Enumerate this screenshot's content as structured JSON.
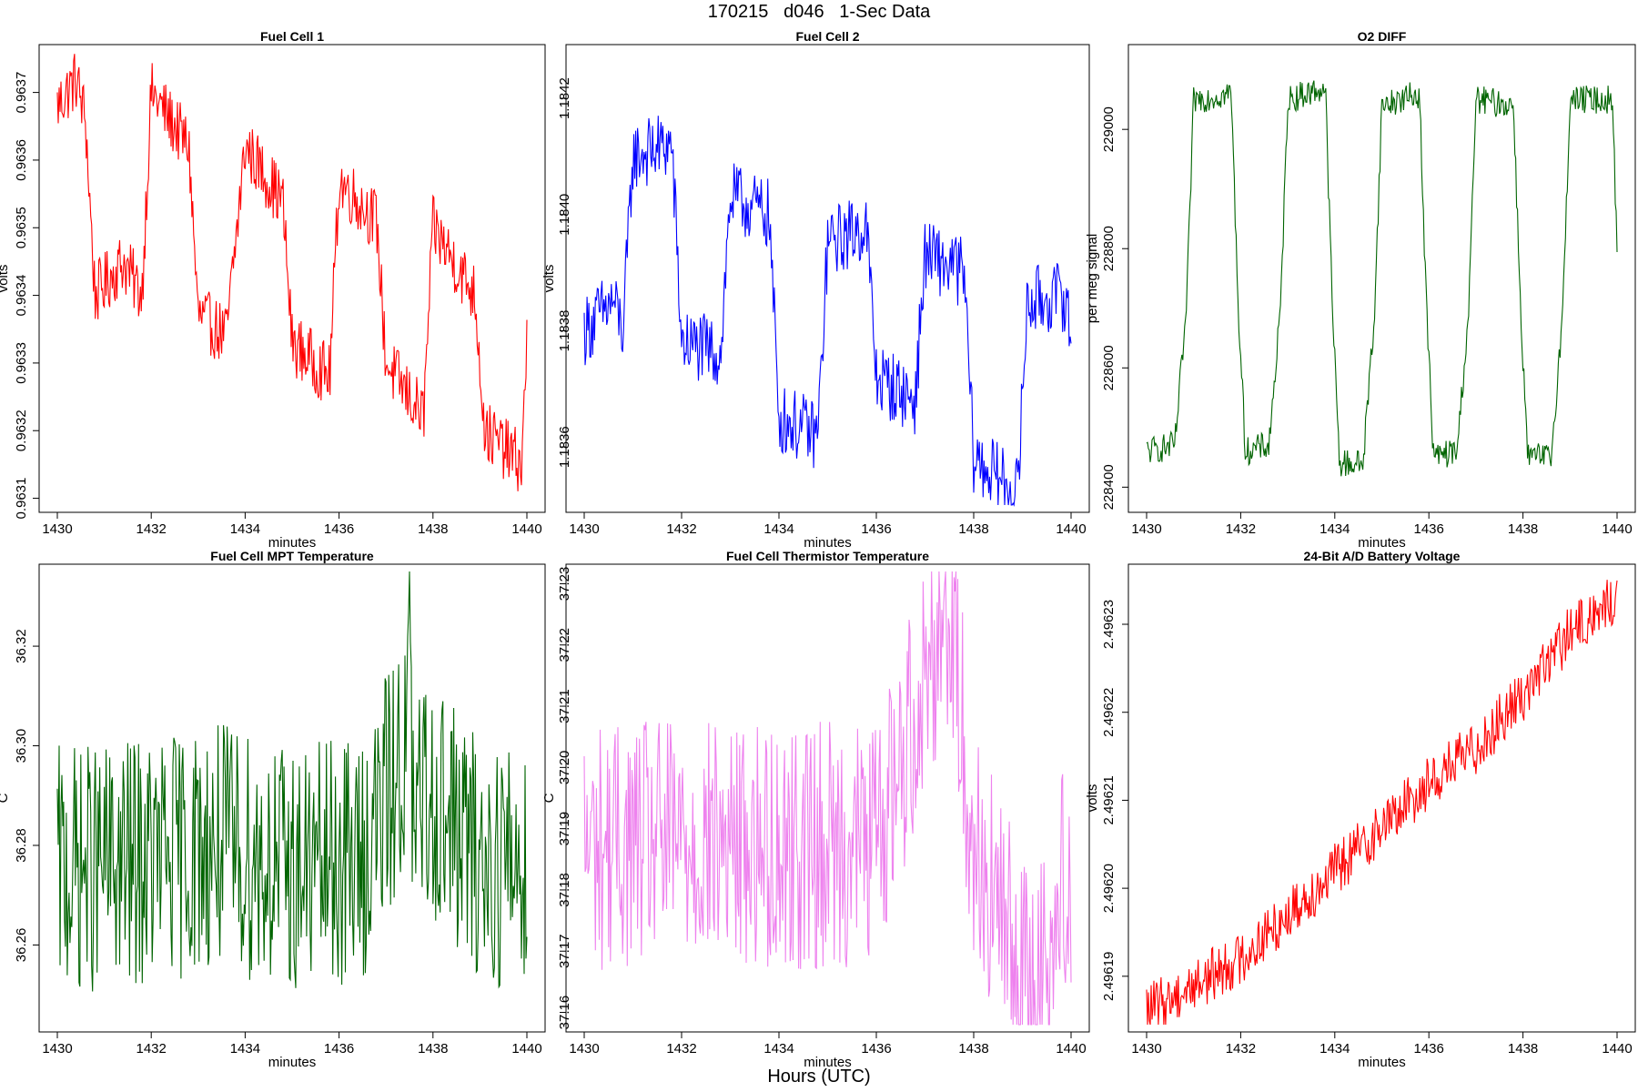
{
  "page": {
    "title": "170215   d046   1-Sec Data",
    "footer": "Hours (UTC)"
  },
  "chart_data": [
    {
      "type": "line",
      "title": "Fuel Cell 1",
      "xlabel": "minutes",
      "ylabel": "volts",
      "color": "#ff0000",
      "xlim": [
        1430,
        1440
      ],
      "ylim": [
        0.96309,
        0.96376
      ],
      "xticks": [
        "1430",
        "1432",
        "1434",
        "1436",
        "1438",
        "1440"
      ],
      "yticks": [
        "0.9631",
        "0.9632",
        "0.9633",
        "0.9634",
        "0.9635",
        "0.9636",
        "0.9637"
      ],
      "x": [
        1430,
        1430.4,
        1430.6,
        1430.8,
        1431.4,
        1431.8,
        1432.0,
        1432.8,
        1433.0,
        1433.6,
        1434.0,
        1434.8,
        1435.0,
        1435.8,
        1436.0,
        1436.8,
        1437.0,
        1437.8,
        1438.0,
        1438.9,
        1439.1,
        1439.9,
        1440
      ],
      "y": [
        0.96368,
        0.96372,
        0.96366,
        0.9634,
        0.96345,
        0.9634,
        0.9637,
        0.96362,
        0.96337,
        0.96334,
        0.96362,
        0.96354,
        0.96333,
        0.96328,
        0.96357,
        0.96351,
        0.9633,
        0.96322,
        0.9635,
        0.9634,
        0.9632,
        0.96315,
        0.96334
      ]
    },
    {
      "type": "line",
      "title": "Fuel Cell 2",
      "xlabel": "minutes",
      "ylabel": "volts",
      "color": "#0000ff",
      "xlim": [
        1430,
        1440
      ],
      "ylim": [
        1.1835,
        1.18428
      ],
      "xticks": [
        "1430",
        "1432",
        "1434",
        "1436",
        "1438",
        "1440"
      ],
      "yticks": [
        "1.1836",
        "1.1838",
        "1.1840",
        "1.1842"
      ],
      "x": [
        1430,
        1430.6,
        1430.8,
        1431.0,
        1431.8,
        1432.0,
        1432.8,
        1433.0,
        1433.8,
        1434.0,
        1434.8,
        1435.0,
        1435.8,
        1436.0,
        1436.8,
        1437.0,
        1437.8,
        1438.0,
        1438.9,
        1439.1,
        1439.9,
        1440
      ],
      "y": [
        1.1838,
        1.18385,
        1.1838,
        1.1841,
        1.18412,
        1.18378,
        1.18376,
        1.18403,
        1.184,
        1.18365,
        1.18362,
        1.18395,
        1.18398,
        1.18372,
        1.18368,
        1.18393,
        1.1839,
        1.18358,
        1.18352,
        1.18385,
        1.18386,
        1.18377
      ]
    },
    {
      "type": "line",
      "title": "O2 DIFF",
      "xlabel": "minutes",
      "ylabel": "per meg signal",
      "color": "#006400",
      "xlim": [
        1430,
        1440
      ],
      "ylim": [
        228370,
        229130
      ],
      "xticks": [
        "1430",
        "1432",
        "1434",
        "1436",
        "1438",
        "1440"
      ],
      "yticks": [
        "228400",
        "228600",
        "228800",
        "229000"
      ],
      "x": [
        1430,
        1430.6,
        1430.85,
        1431.0,
        1431.8,
        1431.95,
        1432.1,
        1432.6,
        1432.85,
        1433.0,
        1433.8,
        1433.95,
        1434.1,
        1434.6,
        1434.85,
        1435.0,
        1435.8,
        1435.95,
        1436.1,
        1436.6,
        1436.85,
        1437.0,
        1437.8,
        1437.95,
        1438.1,
        1438.6,
        1438.85,
        1439.0,
        1439.9,
        1440
      ],
      "y": [
        228460,
        228470,
        228700,
        229050,
        229060,
        228700,
        228460,
        228470,
        228700,
        229050,
        229070,
        228700,
        228440,
        228440,
        228700,
        229040,
        229060,
        228700,
        228450,
        228460,
        228700,
        229050,
        229040,
        228700,
        228450,
        228450,
        228700,
        229050,
        229050,
        228800
      ]
    },
    {
      "type": "line",
      "title": "Fuel Cell MPT Temperature",
      "xlabel": "minutes",
      "ylabel": "C",
      "color": "#006400",
      "xlim": [
        1430,
        1440
      ],
      "ylim": [
        36.244,
        36.335
      ],
      "xticks": [
        "1430",
        "1432",
        "1434",
        "1436",
        "1438",
        "1440"
      ],
      "yticks": [
        "36.26",
        "36.28",
        "36.30",
        "36.32"
      ],
      "x": [
        1430,
        1431.5,
        1433.5,
        1435.0,
        1436.5,
        1437.45,
        1437.5,
        1437.55,
        1438.0,
        1439.0,
        1440
      ],
      "y": [
        36.275,
        36.276,
        36.28,
        36.275,
        36.277,
        36.3,
        36.33,
        36.285,
        36.29,
        36.276,
        36.277
      ]
    },
    {
      "type": "line",
      "title": "Fuel Cell Thermistor Temperature",
      "xlabel": "minutes",
      "ylabel": "C",
      "color": "#ee82ee",
      "xlim": [
        1430,
        1440
      ],
      "ylim": [
        37.158,
        37.232
      ],
      "xticks": [
        "1430",
        "1432",
        "1434",
        "1436",
        "1438",
        "1440"
      ],
      "yticks": [
        "37.16",
        "37.17",
        "37.18",
        "37.19",
        "37.20",
        "37.21",
        "37.22",
        "37.23"
      ],
      "x": [
        1430,
        1432,
        1434,
        1436,
        1437.5,
        1438,
        1439.2,
        1440
      ],
      "y": [
        37.187,
        37.188,
        37.187,
        37.188,
        37.228,
        37.187,
        37.161,
        37.185
      ]
    },
    {
      "type": "line",
      "title": "24-Bit A/D Battery Voltage",
      "xlabel": "minutes",
      "ylabel": "volts",
      "color": "#ff0000",
      "xlim": [
        1430,
        1440
      ],
      "ylim": [
        2.4961845,
        2.496236
      ],
      "xticks": [
        "1430",
        "1432",
        "1434",
        "1436",
        "1438",
        "1440"
      ],
      "yticks": [
        "2.49619",
        "2.49620",
        "2.49621",
        "2.49622",
        "2.49623"
      ],
      "x": [
        1430,
        1431,
        1432,
        1433,
        1434,
        1435,
        1436,
        1437,
        1438,
        1439,
        1440
      ],
      "y": [
        2.496186,
        2.496189,
        2.496192,
        2.496197,
        2.496202,
        2.496207,
        2.496212,
        2.496216,
        2.496222,
        2.496229,
        2.496233
      ]
    }
  ]
}
